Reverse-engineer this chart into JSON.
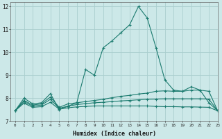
{
  "xlabel": "Humidex (Indice chaleur)",
  "xlim": [
    -0.5,
    23
  ],
  "ylim": [
    7,
    12.2
  ],
  "yticks": [
    7,
    8,
    9,
    10,
    11,
    12
  ],
  "xticks": [
    0,
    1,
    2,
    3,
    4,
    5,
    6,
    7,
    8,
    9,
    10,
    11,
    12,
    13,
    14,
    15,
    16,
    17,
    18,
    19,
    20,
    21,
    22,
    23
  ],
  "bg_color": "#cce8e8",
  "grid_color": "#aacece",
  "line_color": "#1a7a6e",
  "lines": [
    {
      "x": [
        0,
        1,
        2,
        3,
        4,
        5,
        6,
        7,
        8,
        9,
        10,
        11,
        12,
        13,
        14,
        15,
        16,
        17,
        18,
        19,
        20,
        21,
        22,
        23
      ],
      "y": [
        7.45,
        8.0,
        7.75,
        7.8,
        8.2,
        7.5,
        7.65,
        7.8,
        9.25,
        9.0,
        10.2,
        10.5,
        10.85,
        11.2,
        12.0,
        11.5,
        10.2,
        8.8,
        8.35,
        8.3,
        8.5,
        8.35,
        7.8,
        7.45
      ]
    },
    {
      "x": [
        0,
        1,
        2,
        3,
        4,
        5,
        6,
        7,
        8,
        9,
        10,
        11,
        12,
        13,
        14,
        15,
        16,
        17,
        18,
        19,
        20,
        21,
        22,
        23
      ],
      "y": [
        7.45,
        7.9,
        7.7,
        7.75,
        8.05,
        7.6,
        7.75,
        7.8,
        7.85,
        7.9,
        7.95,
        8.02,
        8.08,
        8.12,
        8.18,
        8.22,
        8.3,
        8.32,
        8.3,
        8.3,
        8.35,
        8.35,
        8.3,
        7.45
      ]
    },
    {
      "x": [
        0,
        1,
        2,
        3,
        4,
        5,
        6,
        7,
        8,
        9,
        10,
        11,
        12,
        13,
        14,
        15,
        16,
        17,
        18,
        19,
        20,
        21,
        22,
        23
      ],
      "y": [
        7.45,
        7.85,
        7.65,
        7.7,
        7.95,
        7.56,
        7.65,
        7.72,
        7.76,
        7.8,
        7.82,
        7.85,
        7.88,
        7.9,
        7.93,
        7.95,
        7.96,
        7.97,
        7.97,
        7.97,
        7.97,
        7.97,
        7.96,
        7.45
      ]
    },
    {
      "x": [
        0,
        1,
        2,
        3,
        4,
        5,
        6,
        7,
        8,
        9,
        10,
        11,
        12,
        13,
        14,
        15,
        16,
        17,
        18,
        19,
        20,
        21,
        22,
        23
      ],
      "y": [
        7.45,
        7.78,
        7.6,
        7.63,
        7.82,
        7.52,
        7.58,
        7.62,
        7.64,
        7.66,
        7.66,
        7.66,
        7.66,
        7.66,
        7.66,
        7.66,
        7.64,
        7.63,
        7.63,
        7.62,
        7.62,
        7.61,
        7.6,
        7.45
      ]
    }
  ]
}
